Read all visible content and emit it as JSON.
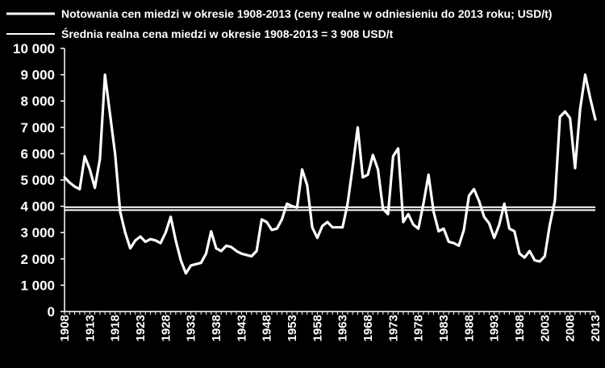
{
  "chart_data": {
    "type": "line",
    "title": "",
    "xlabel": "",
    "ylabel": "",
    "xlim": [
      1908,
      2013
    ],
    "ylim": [
      0,
      10000
    ],
    "y_ticks": [
      0,
      1000,
      2000,
      3000,
      4000,
      5000,
      6000,
      7000,
      8000,
      9000,
      10000
    ],
    "y_tick_labels": [
      "0",
      "1 000",
      "2 000",
      "3 000",
      "4 000",
      "5 000",
      "6 000",
      "7 000",
      "8 000",
      "9 000",
      "10 000"
    ],
    "x_ticks": [
      1908,
      1913,
      1918,
      1923,
      1928,
      1933,
      1938,
      1943,
      1948,
      1953,
      1958,
      1963,
      1968,
      1973,
      1978,
      1983,
      1988,
      1993,
      1998,
      2003,
      2008,
      2013
    ],
    "x_tick_labels": [
      "1908",
      "1913",
      "1918",
      "1923",
      "1928",
      "1933",
      "1938",
      "1943",
      "1948",
      "1953",
      "1958",
      "1963",
      "1968",
      "1973",
      "1978",
      "1983",
      "1988",
      "1993",
      "1998",
      "2003",
      "2008",
      "2013"
    ],
    "grid": false,
    "legend_position": "top-left",
    "colors": {
      "background": "#000000",
      "foreground": "#ffffff"
    },
    "series": [
      {
        "name": "Notowania cen miedzi w okresie 1908-2013 (ceny realne w odniesieniu do 2013 roku; USD/t)",
        "x": [
          1908,
          1909,
          1910,
          1911,
          1912,
          1913,
          1914,
          1915,
          1916,
          1917,
          1918,
          1919,
          1920,
          1921,
          1922,
          1923,
          1924,
          1925,
          1926,
          1927,
          1928,
          1929,
          1930,
          1931,
          1932,
          1933,
          1934,
          1935,
          1936,
          1937,
          1938,
          1939,
          1940,
          1941,
          1942,
          1943,
          1944,
          1945,
          1946,
          1947,
          1948,
          1949,
          1950,
          1951,
          1952,
          1953,
          1954,
          1955,
          1956,
          1957,
          1958,
          1959,
          1960,
          1961,
          1962,
          1963,
          1964,
          1965,
          1966,
          1967,
          1968,
          1969,
          1970,
          1971,
          1972,
          1973,
          1974,
          1975,
          1976,
          1977,
          1978,
          1979,
          1980,
          1981,
          1982,
          1983,
          1984,
          1985,
          1986,
          1987,
          1988,
          1989,
          1990,
          1991,
          1992,
          1993,
          1994,
          1995,
          1996,
          1997,
          1998,
          1999,
          2000,
          2001,
          2002,
          2003,
          2004,
          2005,
          2006,
          2007,
          2008,
          2009,
          2010,
          2011,
          2012,
          2013
        ],
        "y": [
          5100,
          4900,
          4750,
          4650,
          5900,
          5400,
          4700,
          5800,
          9000,
          7500,
          6000,
          3800,
          3000,
          2400,
          2700,
          2850,
          2650,
          2750,
          2700,
          2600,
          3000,
          3600,
          2700,
          1950,
          1450,
          1750,
          1800,
          1850,
          2200,
          3050,
          2400,
          2300,
          2500,
          2450,
          2300,
          2200,
          2150,
          2100,
          2300,
          3500,
          3400,
          3100,
          3150,
          3500,
          4100,
          4000,
          3950,
          5400,
          4800,
          3200,
          2800,
          3250,
          3400,
          3200,
          3200,
          3200,
          4100,
          5500,
          7000,
          5100,
          5200,
          5950,
          5400,
          3900,
          3700,
          5900,
          6200,
          3400,
          3700,
          3300,
          3150,
          4100,
          5200,
          3800,
          3050,
          3150,
          2650,
          2600,
          2500,
          3100,
          4400,
          4650,
          4200,
          3600,
          3350,
          2800,
          3300,
          4100,
          3150,
          3050,
          2200,
          2050,
          2300,
          1950,
          1900,
          2100,
          3300,
          4200,
          7400,
          7600,
          7350,
          5450,
          7700,
          9000,
          8100,
          7300
        ]
      },
      {
        "name": "Średnia realna cena miedzi w okresie 1908-2013 = 3 908 USD/t",
        "x": [
          1908,
          2013
        ],
        "y": [
          3908,
          3908
        ]
      }
    ]
  }
}
